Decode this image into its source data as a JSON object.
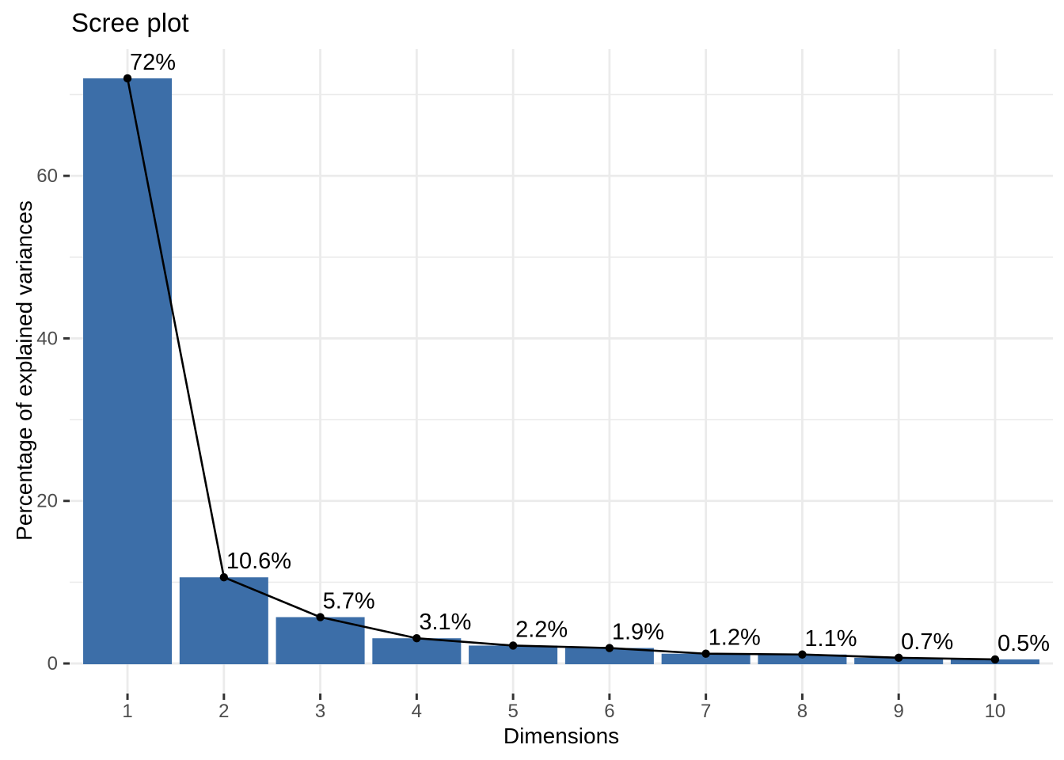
{
  "chart_data": {
    "type": "bar",
    "subtype": "scree-plot-bar-with-line-overlay",
    "title": "Scree plot",
    "xlabel": "Dimensions",
    "ylabel": "Percentage of explained variances",
    "categories": [
      "1",
      "2",
      "3",
      "4",
      "5",
      "6",
      "7",
      "8",
      "9",
      "10"
    ],
    "values": [
      72,
      10.6,
      5.7,
      3.1,
      2.2,
      1.9,
      1.2,
      1.1,
      0.7,
      0.5
    ],
    "point_labels": [
      "72%",
      "10.6%",
      "5.7%",
      "3.1%",
      "2.2%",
      "1.9%",
      "1.2%",
      "1.1%",
      "0.7%",
      "0.5%"
    ],
    "y_major_ticks": [
      0,
      20,
      40,
      60
    ],
    "y_minor_gridlines": [
      10,
      30,
      50,
      70
    ],
    "ylim": [
      -3.6,
      75.6
    ],
    "xlim": [
      0.4,
      10.6
    ],
    "bar_width_fraction": 0.92,
    "grid": "horizontal major+minor, vertical major at each category",
    "legend": "none",
    "colors": {
      "bar_fill": "#3C6EA8",
      "line": "#000000",
      "point": "#000000",
      "gridline": "#EBEBEB",
      "tick_mark": "#333333",
      "tick_label": "#4D4D4D",
      "title": "#000000",
      "axis_title": "#000000",
      "point_label_text": "#000000",
      "background": "#FFFFFF"
    }
  }
}
